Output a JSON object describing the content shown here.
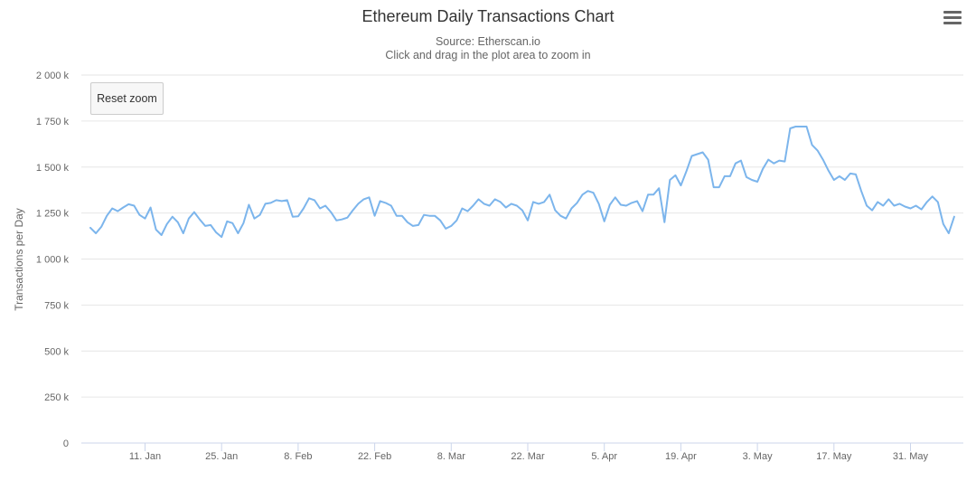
{
  "chart_data": {
    "type": "line",
    "title": "Ethereum Daily Transactions Chart",
    "subtitle_source": "Source: Etherscan.io",
    "subtitle_hint": "Click and drag in the plot area to zoom in",
    "xlabel": "",
    "ylabel": "Transactions per Day",
    "ylim": [
      0,
      2000000
    ],
    "y_ticks": [
      {
        "value": 0,
        "label": "0"
      },
      {
        "value": 250000,
        "label": "250 k"
      },
      {
        "value": 500000,
        "label": "500 k"
      },
      {
        "value": 750000,
        "label": "750 k"
      },
      {
        "value": 1000000,
        "label": "1 000 k"
      },
      {
        "value": 1250000,
        "label": "1 250 k"
      },
      {
        "value": 1500000,
        "label": "1 500 k"
      },
      {
        "value": 1750000,
        "label": "1 750 k"
      },
      {
        "value": 2000000,
        "label": "2 000 k"
      }
    ],
    "x_ticks": [
      {
        "date": "2021-01-11",
        "label": "11. Jan"
      },
      {
        "date": "2021-01-25",
        "label": "25. Jan"
      },
      {
        "date": "2021-02-08",
        "label": "8. Feb"
      },
      {
        "date": "2021-02-22",
        "label": "22. Feb"
      },
      {
        "date": "2021-03-08",
        "label": "8. Mar"
      },
      {
        "date": "2021-03-22",
        "label": "22. Mar"
      },
      {
        "date": "2021-04-05",
        "label": "5. Apr"
      },
      {
        "date": "2021-04-19",
        "label": "19. Apr"
      },
      {
        "date": "2021-05-03",
        "label": "3. May"
      },
      {
        "date": "2021-05-17",
        "label": "17. May"
      },
      {
        "date": "2021-05-31",
        "label": "31. May"
      }
    ],
    "start_date": "2021-01-01",
    "line_color": "#7cb5ec",
    "grid": true,
    "series": [
      {
        "values": [
          1170000,
          1140000,
          1175000,
          1235000,
          1275000,
          1260000,
          1280000,
          1298000,
          1290000,
          1240000,
          1220000,
          1280000,
          1160000,
          1130000,
          1190000,
          1230000,
          1200000,
          1140000,
          1220000,
          1255000,
          1215000,
          1180000,
          1185000,
          1145000,
          1120000,
          1205000,
          1195000,
          1140000,
          1195000,
          1295000,
          1220000,
          1240000,
          1300000,
          1305000,
          1320000,
          1315000,
          1320000,
          1230000,
          1232000,
          1275000,
          1330000,
          1320000,
          1275000,
          1290000,
          1255000,
          1210000,
          1215000,
          1225000,
          1265000,
          1300000,
          1325000,
          1335000,
          1235000,
          1315000,
          1305000,
          1290000,
          1235000,
          1235000,
          1200000,
          1180000,
          1185000,
          1240000,
          1235000,
          1235000,
          1210000,
          1165000,
          1180000,
          1210000,
          1275000,
          1260000,
          1290000,
          1325000,
          1300000,
          1290000,
          1325000,
          1310000,
          1280000,
          1300000,
          1290000,
          1265000,
          1210000,
          1310000,
          1300000,
          1310000,
          1350000,
          1265000,
          1235000,
          1220000,
          1275000,
          1305000,
          1350000,
          1370000,
          1360000,
          1300000,
          1205000,
          1295000,
          1335000,
          1295000,
          1290000,
          1305000,
          1315000,
          1260000,
          1350000,
          1350000,
          1385000,
          1200000,
          1430000,
          1455000,
          1400000,
          1475000,
          1560000,
          1570000,
          1580000,
          1540000,
          1390000,
          1390000,
          1450000,
          1450000,
          1520000,
          1535000,
          1445000,
          1430000,
          1420000,
          1490000,
          1540000,
          1520000,
          1535000,
          1530000,
          1710000,
          1720000,
          1720000,
          1720000,
          1620000,
          1590000,
          1540000,
          1480000,
          1430000,
          1450000,
          1430000,
          1465000,
          1460000,
          1370000,
          1290000,
          1265000,
          1310000,
          1290000,
          1325000,
          1290000,
          1300000,
          1285000,
          1275000,
          1290000,
          1270000,
          1310000,
          1340000,
          1310000,
          1190000,
          1140000,
          1230000
        ]
      }
    ]
  },
  "ui": {
    "menu_icon": "hamburger-menu-icon",
    "reset_zoom_label": "Reset zoom"
  }
}
